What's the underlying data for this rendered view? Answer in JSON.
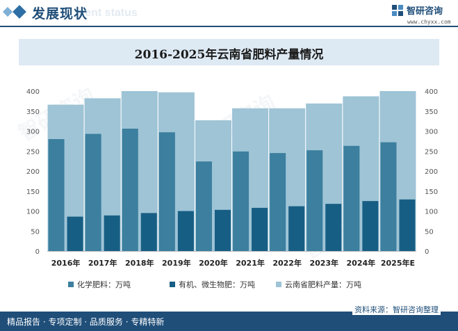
{
  "header": {
    "section_title": "发展现状",
    "ghost_text": "ment status",
    "logo_text": "智研咨询",
    "logo_url": "www.chyxx.com"
  },
  "chart_data": {
    "type": "bar",
    "title": "2016-2025年云南省肥料产量情况",
    "categories": [
      "2016年",
      "2017年",
      "2018年",
      "2019年",
      "2020年",
      "2021年",
      "2022年",
      "2023年",
      "2024年",
      "2025年E"
    ],
    "series": [
      {
        "name": "化学肥料：万吨",
        "values": [
          280,
          293,
          306,
          297,
          224,
          249,
          245,
          252,
          263,
          272
        ],
        "color": "#3c7f9e"
      },
      {
        "name": "有机、微生物肥：万吨",
        "values": [
          86,
          89,
          95,
          100,
          103,
          108,
          112,
          118,
          125,
          129
        ],
        "color": "#175e84"
      },
      {
        "name": "云南省肥料产量：万吨",
        "values": [
          366,
          382,
          400,
          397,
          327,
          357,
          357,
          369,
          387,
          400
        ],
        "color": "#9ec4d6"
      }
    ],
    "ylim": [
      0,
      400
    ],
    "yticks": [
      0,
      50,
      100,
      150,
      200,
      250,
      300,
      350,
      400
    ],
    "y2ticks": [
      0,
      50,
      100,
      150,
      200,
      250,
      300,
      350,
      400
    ],
    "legend_position": "bottom",
    "grid": false
  },
  "footer": {
    "tagline": "精品报告 · 专项定制 · 品质服务 · 专精特新",
    "source": "资料来源：智研咨询整理"
  }
}
